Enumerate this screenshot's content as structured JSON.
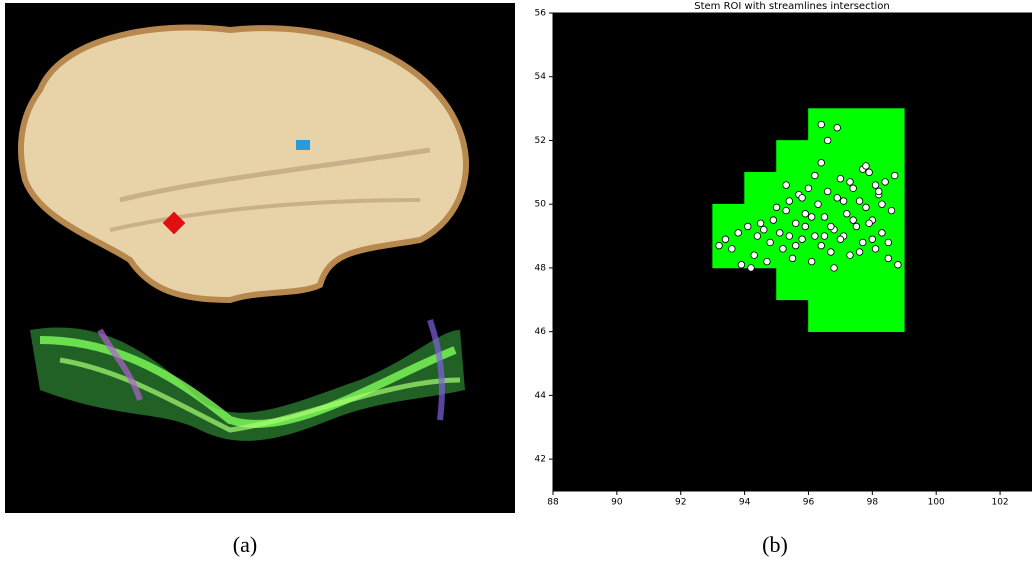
{
  "captions": [
    "(a)",
    "(b)"
  ],
  "chart_data": {
    "type": "scatter",
    "title": "Stem ROI with streamlines intersection",
    "background": "#000000",
    "roi_color": "#00ff00",
    "point_color": "#ffffff",
    "roi": [
      [
        93,
        94,
        48,
        50
      ],
      [
        94,
        95,
        48,
        51
      ],
      [
        95,
        96,
        47,
        52
      ],
      [
        96,
        99,
        46,
        53
      ]
    ],
    "xlim": [
      88,
      103
    ],
    "ylim": [
      41,
      56
    ],
    "xticks": [
      88,
      90,
      92,
      94,
      96,
      98,
      100,
      102
    ],
    "yticks": [
      42,
      44,
      46,
      48,
      50,
      52,
      54,
      56
    ],
    "x": [
      93.2,
      93.4,
      93.6,
      93.8,
      93.9,
      94.1,
      94.3,
      94.4,
      94.6,
      94.8,
      94.9,
      95.1,
      95.2,
      95.3,
      95.4,
      95.5,
      95.6,
      95.7,
      95.8,
      95.9,
      96.0,
      96.1,
      96.2,
      96.3,
      96.4,
      96.5,
      96.6,
      96.7,
      96.8,
      96.9,
      97.0,
      97.1,
      97.2,
      97.3,
      97.4,
      97.5,
      97.6,
      97.7,
      97.8,
      97.9,
      98.0,
      98.1,
      98.2,
      98.3,
      98.4,
      98.5,
      98.6,
      98.7,
      98.8,
      95.3,
      95.6,
      95.9,
      96.2,
      96.5,
      96.8,
      97.1,
      97.4,
      97.7,
      98.0,
      98.3,
      94.5,
      94.7,
      95.0,
      95.4,
      95.8,
      96.1,
      96.4,
      96.7,
      97.0,
      97.3,
      97.6,
      97.9,
      98.2,
      98.5,
      96.4,
      96.9,
      96.6,
      97.8,
      98.1,
      94.2
    ],
    "values": [
      48.7,
      48.9,
      48.6,
      49.1,
      48.1,
      49.3,
      48.4,
      49.0,
      49.2,
      48.8,
      49.5,
      49.1,
      48.6,
      49.8,
      50.1,
      48.3,
      49.4,
      50.3,
      48.9,
      49.7,
      50.5,
      48.2,
      49.0,
      50.0,
      48.7,
      49.6,
      50.4,
      48.5,
      49.2,
      50.2,
      50.8,
      49.0,
      49.7,
      48.4,
      50.5,
      49.3,
      50.1,
      48.8,
      49.9,
      51.0,
      49.5,
      48.6,
      50.3,
      49.1,
      50.7,
      48.3,
      49.8,
      50.9,
      48.1,
      50.6,
      48.7,
      49.3,
      50.9,
      49.0,
      48.0,
      50.1,
      49.5,
      51.1,
      48.9,
      50.0,
      49.4,
      48.2,
      49.9,
      49.0,
      50.2,
      49.6,
      51.3,
      49.3,
      48.9,
      50.7,
      48.5,
      49.4,
      50.4,
      48.8,
      52.5,
      52.4,
      52.0,
      51.2,
      50.6,
      48.0
    ]
  }
}
